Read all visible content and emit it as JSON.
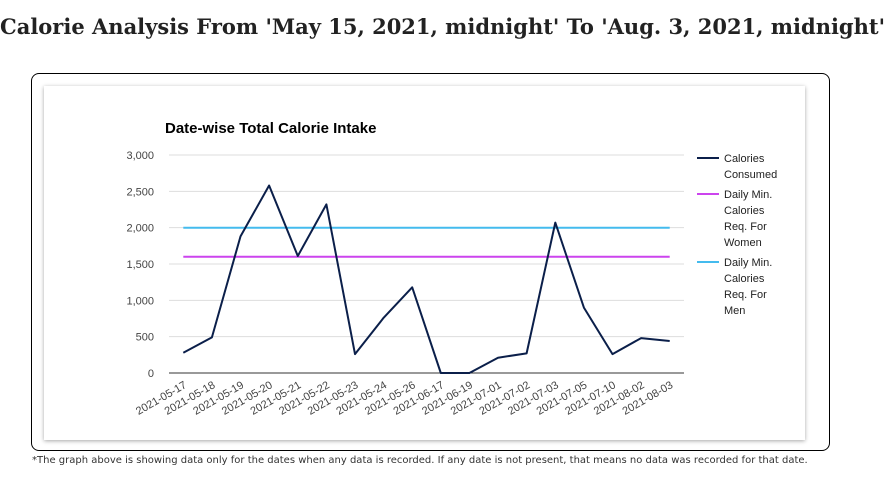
{
  "page": {
    "title": "Calorie Analysis From 'May 15, 2021, midnight' To 'Aug. 3, 2021, midnight'",
    "footnote": "*The graph above is showing data only for the dates when any data is recorded. If any date is not present, that means no data was recorded for that date."
  },
  "chart_data": {
    "type": "line",
    "title": "Date-wise Total Calorie Intake",
    "xlabel": "",
    "ylabel": "",
    "ylim": [
      0,
      3000
    ],
    "yticks": [
      0,
      500,
      1000,
      1500,
      2000,
      2500,
      3000
    ],
    "ytick_labels": [
      "0",
      "500",
      "1,000",
      "1,500",
      "2,000",
      "2,500",
      "3,000"
    ],
    "grid": true,
    "legend_position": "right",
    "categories": [
      "2021-05-17",
      "2021-05-18",
      "2021-05-19",
      "2021-05-20",
      "2021-05-21",
      "2021-05-22",
      "2021-05-23",
      "2021-05-24",
      "2021-05-26",
      "2021-06-17",
      "2021-06-19",
      "2021-07-01",
      "2021-07-02",
      "2021-07-03",
      "2021-07-05",
      "2021-07-10",
      "2021-08-02",
      "2021-08-03"
    ],
    "series": [
      {
        "name": "Calories Consumed",
        "name_lines": [
          "Calories",
          "Consumed"
        ],
        "color": "#0b1f4a",
        "values": [
          280,
          490,
          1880,
          2580,
          1610,
          2320,
          260,
          760,
          1180,
          0,
          0,
          210,
          270,
          2070,
          900,
          260,
          480,
          440
        ]
      },
      {
        "name": "Daily Min. Calories Req. For Women",
        "name_lines": [
          "Daily Min.",
          "Calories",
          "Req. For",
          "Women"
        ],
        "color": "#cc44ee",
        "values": [
          1600,
          1600,
          1600,
          1600,
          1600,
          1600,
          1600,
          1600,
          1600,
          1600,
          1600,
          1600,
          1600,
          1600,
          1600,
          1600,
          1600,
          1600
        ]
      },
      {
        "name": "Daily Min. Calories Req. For Men",
        "name_lines": [
          "Daily Min.",
          "Calories",
          "Req. For",
          "Men"
        ],
        "color": "#44bbee",
        "values": [
          2000,
          2000,
          2000,
          2000,
          2000,
          2000,
          2000,
          2000,
          2000,
          2000,
          2000,
          2000,
          2000,
          2000,
          2000,
          2000,
          2000,
          2000
        ]
      }
    ]
  }
}
